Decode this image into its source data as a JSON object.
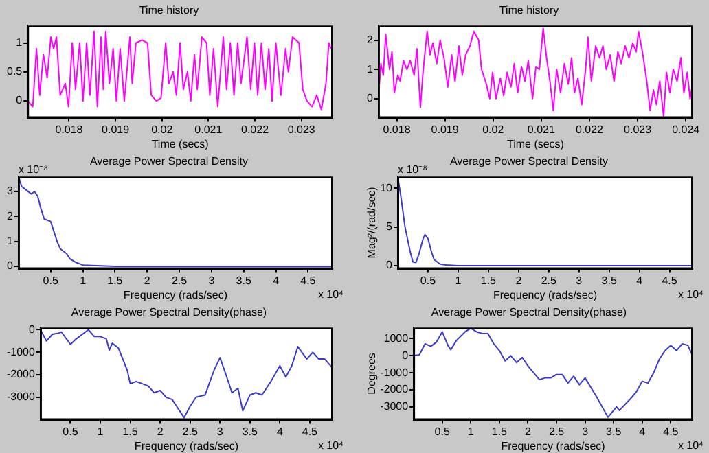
{
  "chart_data": [
    {
      "type": "line",
      "title": "Time history",
      "xlabel": "Time (secs)",
      "xlim": [
        0.01711,
        0.02367
      ],
      "ylim": [
        -0.29,
        1.3
      ],
      "xticks": [
        0.018,
        0.019,
        0.02,
        0.021,
        0.022,
        0.023
      ],
      "yticks": [
        0,
        0.5,
        1
      ],
      "grid": false,
      "legend": false,
      "series": [
        {
          "color": "#ff00ff",
          "x": [
            0.01711,
            0.01722,
            0.0173,
            0.01737,
            0.01745,
            0.01753,
            0.01761,
            0.01767,
            0.01773,
            0.01781,
            0.01792,
            0.01799,
            0.01807,
            0.01814,
            0.01823,
            0.0183,
            0.01838,
            0.01845,
            0.01854,
            0.01861,
            0.01869,
            0.01874,
            0.01879,
            0.01887,
            0.01895,
            0.01902,
            0.0191,
            0.01919,
            0.01931,
            0.01936,
            0.01944,
            0.01957,
            0.01969,
            0.01977,
            0.01988,
            0.01998,
            0.02008,
            0.02015,
            0.02024,
            0.02031,
            0.02039,
            0.02046,
            0.02055,
            0.02062,
            0.0207,
            0.02076,
            0.02086,
            0.02096,
            0.02103,
            0.02111,
            0.0212,
            0.02132,
            0.02139,
            0.02147,
            0.02155,
            0.02163,
            0.0217,
            0.02183,
            0.02191,
            0.02199,
            0.02206,
            0.02214,
            0.02222,
            0.0223,
            0.02237,
            0.02245,
            0.02256,
            0.02266,
            0.02272,
            0.02281,
            0.02295,
            0.02303,
            0.02312,
            0.02323,
            0.02333,
            0.02343,
            0.02353,
            0.02359,
            0.02364
          ],
          "values": [
            0,
            -0.1,
            0.9,
            0.1,
            0.8,
            0.4,
            1.1,
            0.9,
            1.1,
            0.1,
            0.3,
            -0.1,
            1,
            0.2,
            1,
            0,
            1,
            0.1,
            1.2,
            -0.1,
            1.1,
            0.2,
            1.2,
            0.3,
            0.9,
            0,
            0.9,
            0,
            1.1,
            0.3,
            1,
            1.05,
            1,
            0.1,
            0,
            0.05,
            1,
            0.3,
            0.5,
            0.1,
            1,
            0.2,
            0.5,
            0,
            0.8,
            0.2,
            1.1,
            1,
            0.1,
            0.9,
            -0.1,
            1.1,
            0.2,
            1,
            0.1,
            1,
            0.3,
            1.1,
            0.2,
            1,
            0.1,
            1,
            0.2,
            0.9,
            0,
            1,
            0.1,
            0.9,
            0.5,
            1.1,
            1,
            0.2,
            0,
            -0.1,
            0.1,
            -0.15,
            0.3,
            1,
            0.9
          ]
        }
      ]
    },
    {
      "type": "line",
      "title": "Time history",
      "xlabel": "Time (secs)",
      "xlim": [
        0.01762,
        0.02414
      ],
      "ylim": [
        -0.65,
        2.5
      ],
      "xticks": [
        0.018,
        0.019,
        0.02,
        0.021,
        0.022,
        0.023,
        0.024
      ],
      "yticks": [
        0,
        1,
        2
      ],
      "grid": false,
      "legend": false,
      "series": [
        {
          "color": "#ff00ff",
          "x": [
            0.01764,
            0.01767,
            0.01772,
            0.01777,
            0.01785,
            0.0179,
            0.01795,
            0.01802,
            0.01807,
            0.01814,
            0.01821,
            0.01828,
            0.01836,
            0.01842,
            0.01849,
            0.01855,
            0.01863,
            0.01869,
            0.01875,
            0.01883,
            0.0189,
            0.01898,
            0.01906,
            0.01914,
            0.01921,
            0.01929,
            0.01936,
            0.01943,
            0.01952,
            0.0196,
            0.0197,
            0.01976,
            0.01986,
            0.01993,
            0.01999,
            0.02006,
            0.02015,
            0.02022,
            0.02029,
            0.02037,
            0.02044,
            0.02051,
            0.02059,
            0.02066,
            0.02073,
            0.02082,
            0.02089,
            0.02096,
            0.02104,
            0.02111,
            0.02118,
            0.02125,
            0.02132,
            0.0214,
            0.02148,
            0.02156,
            0.02163,
            0.02169,
            0.02176,
            0.02184,
            0.02192,
            0.02197,
            0.02204,
            0.02213,
            0.02221,
            0.02228,
            0.02235,
            0.02243,
            0.02251,
            0.02259,
            0.02266,
            0.02274,
            0.02282,
            0.0229,
            0.02297,
            0.02302,
            0.0231,
            0.02319,
            0.02326,
            0.02333,
            0.02339,
            0.02346,
            0.02354,
            0.0236,
            0.02367,
            0.02374,
            0.02382,
            0.0239,
            0.02396,
            0.02403,
            0.02409,
            0.02414
          ],
          "values": [
            0.5,
            1.2,
            0.8,
            2.2,
            1,
            1.6,
            0.2,
            0.8,
            0.6,
            1.3,
            1,
            1.3,
            0.8,
            1.7,
            -0.3,
            1,
            2.3,
            1.5,
            1.9,
            1.2,
            2,
            1.4,
            0.4,
            1.5,
            0.6,
            1.8,
            0.8,
            1.5,
            1.8,
            2.3,
            2,
            1,
            0.5,
            0,
            0.9,
            0,
            0.7,
            0.1,
            0.9,
            0.4,
            1.2,
            0.2,
            1.1,
            0.6,
            1.3,
            0,
            1.1,
            1,
            2.4,
            1.4,
            0.6,
            -0.4,
            1,
            0.2,
            1.2,
            0.5,
            1.4,
            0.2,
            0.7,
            -0.2,
            1,
            2.1,
            0.6,
            1.8,
            1.4,
            1.8,
            1,
            1.5,
            0.6,
            1.6,
            1.2,
            1.8,
            1.4,
            1.9,
            1.6,
            2.3,
            1.6,
            0.6,
            -0.4,
            0.3,
            -0.2,
            0.6,
            -0.6,
            0.9,
            0.2,
            1,
            0.6,
            1.4,
            0.2,
            0.9,
            0,
            0.5
          ]
        }
      ]
    },
    {
      "type": "line",
      "title": "Average Power Spectral Density",
      "xlabel": "Frequency (rads/sec)",
      "annotations": [
        "x 10⁻⁸",
        "x 10⁴"
      ],
      "xlim": [
        0,
        4.88
      ],
      "ylim": [
        -0.1,
        3.6
      ],
      "xticks": [
        0.5,
        1,
        1.5,
        2,
        2.5,
        3,
        3.5,
        4,
        4.5
      ],
      "yticks": [
        0,
        1,
        2,
        3
      ],
      "grid": false,
      "legend": false,
      "series": [
        {
          "color": "#3a3ad0",
          "x": [
            0,
            0.05,
            0.1,
            0.2,
            0.25,
            0.3,
            0.35,
            0.4,
            0.5,
            0.55,
            0.6,
            0.65,
            0.75,
            0.8,
            0.9,
            1,
            1.5,
            2,
            2.5,
            3,
            3.5,
            4,
            4.5,
            4.88
          ],
          "values": [
            3.6,
            3.2,
            3.1,
            2.9,
            3,
            2.8,
            2.3,
            1.9,
            1.8,
            1.4,
            1,
            0.7,
            0.5,
            0.3,
            0.15,
            0.05,
            0,
            0,
            0,
            0,
            0,
            0,
            0,
            0
          ]
        }
      ]
    },
    {
      "type": "line",
      "title": "Average Power Spectral Density",
      "xlabel": "Frequency (rads/sec)",
      "ylabel": "Mag²/(rad/sec)",
      "annotations": [
        "x 10⁻⁸",
        "x 10⁴"
      ],
      "xlim": [
        0,
        4.88
      ],
      "ylim": [
        -0.4,
        11.5
      ],
      "xticks": [
        0.5,
        1,
        1.5,
        2,
        2.5,
        3,
        3.5,
        4,
        4.5
      ],
      "yticks": [
        0,
        5,
        10
      ],
      "grid": false,
      "legend": false,
      "series": [
        {
          "color": "#3a3ad0",
          "x": [
            0,
            0.05,
            0.12,
            0.2,
            0.25,
            0.3,
            0.35,
            0.42,
            0.45,
            0.5,
            0.55,
            0.6,
            0.7,
            0.8,
            1,
            1.5,
            2,
            2.5,
            3,
            3.5,
            4,
            4.5,
            4.88
          ],
          "values": [
            11.5,
            9,
            5,
            2,
            0.5,
            0.4,
            1.5,
            3.5,
            4,
            3.5,
            2,
            0.8,
            0.2,
            0.1,
            0,
            0,
            0,
            0,
            0,
            0,
            0,
            0,
            0
          ]
        }
      ]
    },
    {
      "type": "line",
      "title": "Average Power Spectral Density(phase)",
      "xlabel": "Frequency (rads/sec)",
      "annotations": [
        "x 10⁴"
      ],
      "xlim": [
        0,
        4.88
      ],
      "ylim": [
        -4000,
        100
      ],
      "xticks": [
        0.5,
        1,
        1.5,
        2,
        2.5,
        3,
        3.5,
        4,
        4.5
      ],
      "yticks": [
        0,
        -1000,
        -2000,
        -3000
      ],
      "grid": false,
      "legend": false,
      "series": [
        {
          "color": "#3a3ad0",
          "x": [
            0,
            0.1,
            0.2,
            0.3,
            0.35,
            0.5,
            0.6,
            0.75,
            0.8,
            0.9,
            1,
            1.1,
            1.15,
            1.2,
            1.3,
            1.45,
            1.5,
            1.6,
            1.7,
            1.8,
            1.9,
            2,
            2.1,
            2.2,
            2.3,
            2.4,
            2.5,
            2.6,
            2.75,
            2.9,
            3,
            3.1,
            3.2,
            3.3,
            3.38,
            3.5,
            3.6,
            3.7,
            3.85,
            4,
            4.1,
            4.2,
            4.3,
            4.45,
            4.55,
            4.65,
            4.75,
            4.88
          ],
          "values": [
            0,
            -500,
            -200,
            -150,
            -100,
            -650,
            -400,
            -100,
            0,
            -300,
            -300,
            -400,
            -900,
            -600,
            -800,
            -1800,
            -2400,
            -2300,
            -2400,
            -2500,
            -2800,
            -2700,
            -3000,
            -3100,
            -3500,
            -3900,
            -3400,
            -3000,
            -2900,
            -1800,
            -1240,
            -2000,
            -2800,
            -2600,
            -3600,
            -2900,
            -2800,
            -2900,
            -2300,
            -1600,
            -2100,
            -1600,
            -750,
            -1300,
            -1000,
            -1300,
            -1300,
            -1700
          ]
        }
      ]
    },
    {
      "type": "line",
      "title": "Average Power Spectral Density(phase)",
      "xlabel": "Frequency (rads/sec)",
      "ylabel": "Degrees",
      "annotations": [
        "x 10⁴"
      ],
      "xlim": [
        0,
        4.88
      ],
      "ylim": [
        -3750,
        1650
      ],
      "xticks": [
        0.5,
        1,
        1.5,
        2,
        2.5,
        3,
        3.5,
        4,
        4.5
      ],
      "yticks": [
        -3000,
        -2000,
        -1000,
        0,
        1000
      ],
      "grid": false,
      "legend": false,
      "series": [
        {
          "color": "#3a3ad0",
          "x": [
            0,
            0.1,
            0.2,
            0.3,
            0.4,
            0.5,
            0.6,
            0.65,
            0.75,
            0.9,
            1,
            1.1,
            1.2,
            1.3,
            1.4,
            1.5,
            1.6,
            1.7,
            1.8,
            1.9,
            2,
            2.1,
            2.2,
            2.3,
            2.4,
            2.5,
            2.6,
            2.7,
            2.8,
            2.9,
            3,
            3.2,
            3.4,
            3.45,
            3.55,
            3.6,
            3.8,
            3.9,
            4,
            4.1,
            4.2,
            4.3,
            4.4,
            4.5,
            4.6,
            4.7,
            4.8,
            4.88
          ],
          "values": [
            0,
            50,
            700,
            550,
            800,
            1400,
            600,
            350,
            900,
            1400,
            1600,
            1400,
            1300,
            1300,
            700,
            300,
            -300,
            0,
            -400,
            -100,
            -600,
            -1000,
            -1400,
            -1300,
            -1300,
            -1100,
            -1100,
            -1600,
            -1200,
            -1700,
            -1300,
            -2400,
            -3600,
            -3400,
            -3000,
            -3200,
            -2500,
            -2100,
            -1500,
            -1600,
            -1000,
            -200,
            300,
            600,
            300,
            700,
            600,
            0
          ]
        }
      ]
    }
  ]
}
